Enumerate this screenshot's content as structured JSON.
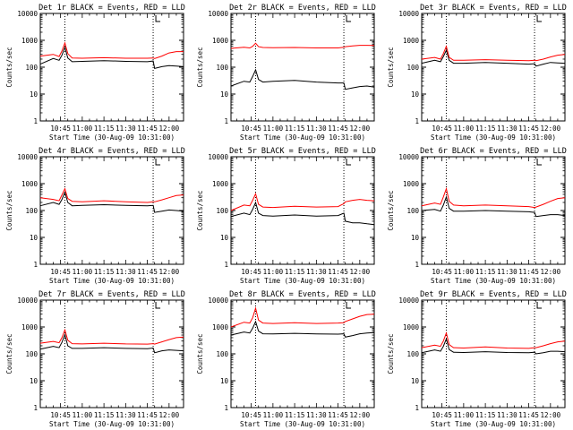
{
  "colors": {
    "events": "#000000",
    "lld": "#ff0000",
    "marker": "#000000"
  },
  "chart_data": [
    {
      "type": "line",
      "title": "Det 1r BLACK = Events, RED = LLD",
      "xlabel": "Start Time (30-Aug-09 10:31:00)",
      "ylabel": "Counts/sec",
      "x_tick_labels": [
        "10:45",
        "11:00",
        "11:15",
        "11:30",
        "11:45",
        "12:00"
      ],
      "y_tick_labels": [
        "1",
        "10",
        "100",
        "1000",
        "10000"
      ],
      "xlim": [
        "10:31",
        "12:10"
      ],
      "ylim": [
        1,
        10000
      ],
      "y_scale": "log",
      "markers": [
        "10:48",
        "11:49"
      ],
      "x": [
        "10:31",
        "10:40",
        "10:44",
        "10:46",
        "10:48",
        "10:50",
        "10:53",
        "11:00",
        "11:15",
        "11:30",
        "11:45",
        "11:49",
        "11:50",
        "11:55",
        "12:00",
        "12:05",
        "12:10"
      ],
      "series": [
        {
          "name": "BLACK = Events",
          "values": [
            130,
            210,
            180,
            280,
            550,
            220,
            160,
            165,
            175,
            165,
            160,
            170,
            90,
            105,
            115,
            110,
            105
          ]
        },
        {
          "name": "RED = LLD",
          "values": [
            260,
            300,
            250,
            400,
            800,
            320,
            220,
            215,
            225,
            215,
            215,
            220,
            210,
            260,
            340,
            380,
            380
          ]
        }
      ]
    },
    {
      "type": "line",
      "title": "Det 2r BLACK = Events, RED = LLD",
      "xlabel": "Start Time (30-Aug-09 10:31:00)",
      "ylabel": "Counts/sec",
      "x_tick_labels": [
        "10:45",
        "11:00",
        "11:15",
        "11:30",
        "11:45",
        "12:00"
      ],
      "y_tick_labels": [
        "1",
        "10",
        "100",
        "1000",
        "10000"
      ],
      "xlim": [
        "10:31",
        "12:10"
      ],
      "ylim": [
        1,
        10000
      ],
      "y_scale": "log",
      "markers": [
        "10:48",
        "11:49"
      ],
      "x": [
        "10:31",
        "10:40",
        "10:44",
        "10:46",
        "10:48",
        "10:50",
        "10:53",
        "11:00",
        "11:15",
        "11:30",
        "11:45",
        "11:49",
        "11:50",
        "11:55",
        "12:00",
        "12:05",
        "12:10"
      ],
      "series": [
        {
          "name": "BLACK = Events",
          "values": [
            20,
            30,
            28,
            45,
            80,
            35,
            28,
            30,
            32,
            28,
            26,
            26,
            15,
            17,
            19,
            20,
            18
          ]
        },
        {
          "name": "RED = LLD",
          "values": [
            500,
            550,
            520,
            600,
            780,
            580,
            540,
            530,
            540,
            520,
            520,
            550,
            580,
            620,
            650,
            650,
            640
          ]
        }
      ]
    },
    {
      "type": "line",
      "title": "Det 3r BLACK = Events, RED = LLD",
      "xlabel": "Start Time (30-Aug-09 10:31:00)",
      "ylabel": "Counts/sec",
      "x_tick_labels": [
        "10:45",
        "11:00",
        "11:15",
        "11:30",
        "11:45",
        "12:00"
      ],
      "y_tick_labels": [
        "1",
        "10",
        "100",
        "1000",
        "10000"
      ],
      "xlim": [
        "10:31",
        "12:10"
      ],
      "ylim": [
        1,
        10000
      ],
      "y_scale": "log",
      "markers": [
        "10:48",
        "11:49"
      ],
      "x": [
        "10:31",
        "10:40",
        "10:44",
        "10:46",
        "10:48",
        "10:50",
        "10:53",
        "11:00",
        "11:15",
        "11:30",
        "11:45",
        "11:49",
        "11:50",
        "11:55",
        "12:00",
        "12:05",
        "12:10"
      ],
      "series": [
        {
          "name": "BLACK = Events",
          "values": [
            140,
            180,
            160,
            250,
            430,
            180,
            140,
            140,
            150,
            140,
            130,
            135,
            110,
            130,
            150,
            145,
            140
          ]
        },
        {
          "name": "RED = LLD",
          "values": [
            200,
            230,
            200,
            320,
            600,
            230,
            180,
            180,
            190,
            180,
            175,
            180,
            175,
            200,
            240,
            280,
            300
          ]
        }
      ]
    },
    {
      "type": "line",
      "title": "Det 4r BLACK = Events, RED = LLD",
      "xlabel": "Start Time (30-Aug-09 10:31:00)",
      "ylabel": "Counts/sec",
      "x_tick_labels": [
        "10:45",
        "11:00",
        "11:15",
        "11:30",
        "11:45",
        "12:00"
      ],
      "y_tick_labels": [
        "1",
        "10",
        "100",
        "1000",
        "10000"
      ],
      "xlim": [
        "10:31",
        "12:10"
      ],
      "ylim": [
        1,
        10000
      ],
      "y_scale": "log",
      "markers": [
        "10:48",
        "11:49"
      ],
      "x": [
        "10:31",
        "10:40",
        "10:44",
        "10:46",
        "10:48",
        "10:50",
        "10:53",
        "11:00",
        "11:15",
        "11:30",
        "11:45",
        "11:49",
        "11:50",
        "11:55",
        "12:00",
        "12:05",
        "12:10"
      ],
      "series": [
        {
          "name": "BLACK = Events",
          "values": [
            150,
            200,
            170,
            260,
            480,
            200,
            150,
            155,
            165,
            155,
            150,
            155,
            85,
            95,
            105,
            100,
            95
          ]
        },
        {
          "name": "RED = LLD",
          "values": [
            300,
            260,
            230,
            380,
            650,
            280,
            220,
            210,
            230,
            210,
            200,
            210,
            210,
            250,
            300,
            360,
            380
          ]
        }
      ]
    },
    {
      "type": "line",
      "title": "Det 5r BLACK = Events, RED = LLD",
      "xlabel": "Start Time (30-Aug-09 10:31:00)",
      "ylabel": "Counts/sec",
      "x_tick_labels": [
        "10:45",
        "11:00",
        "11:15",
        "11:30",
        "11:45",
        "12:00"
      ],
      "y_tick_labels": [
        "1",
        "10",
        "100",
        "1000",
        "10000"
      ],
      "xlim": [
        "10:31",
        "12:10"
      ],
      "ylim": [
        1,
        10000
      ],
      "y_scale": "log",
      "markers": [
        "10:48",
        "11:49"
      ],
      "x": [
        "10:31",
        "10:40",
        "10:44",
        "10:46",
        "10:48",
        "10:50",
        "10:53",
        "11:00",
        "11:15",
        "11:30",
        "11:45",
        "11:49",
        "11:50",
        "11:55",
        "12:00",
        "12:05",
        "12:10"
      ],
      "series": [
        {
          "name": "BLACK = Events",
          "values": [
            60,
            80,
            70,
            110,
            200,
            80,
            65,
            62,
            68,
            62,
            65,
            80,
            40,
            35,
            35,
            32,
            30
          ]
        },
        {
          "name": "RED = LLD",
          "values": [
            100,
            160,
            150,
            240,
            420,
            170,
            135,
            130,
            145,
            135,
            140,
            180,
            210,
            240,
            260,
            240,
            230
          ]
        }
      ]
    },
    {
      "type": "line",
      "title": "Det 6r BLACK = Events, RED = LLD",
      "xlabel": "Start Time (30-Aug-09 10:31:00)",
      "ylabel": "Counts/sec",
      "x_tick_labels": [
        "10:45",
        "11:00",
        "11:15",
        "11:30",
        "11:45",
        "12:00"
      ],
      "y_tick_labels": [
        "1",
        "10",
        "100",
        "1000",
        "10000"
      ],
      "xlim": [
        "10:31",
        "12:10"
      ],
      "ylim": [
        1,
        10000
      ],
      "y_scale": "log",
      "markers": [
        "10:48",
        "11:49"
      ],
      "x": [
        "10:31",
        "10:40",
        "10:44",
        "10:46",
        "10:48",
        "10:50",
        "10:53",
        "11:00",
        "11:15",
        "11:30",
        "11:45",
        "11:49",
        "11:50",
        "11:55",
        "12:00",
        "12:05",
        "12:10"
      ],
      "series": [
        {
          "name": "BLACK = Events",
          "values": [
            100,
            110,
            95,
            160,
            320,
            120,
            95,
            95,
            100,
            95,
            90,
            85,
            60,
            65,
            70,
            70,
            65
          ]
        },
        {
          "name": "RED = LLD",
          "values": [
            150,
            190,
            170,
            320,
            650,
            220,
            160,
            150,
            160,
            150,
            140,
            130,
            135,
            170,
            220,
            280,
            300
          ]
        }
      ]
    },
    {
      "type": "line",
      "title": "Det 7r BLACK = Events, RED = LLD",
      "xlabel": "Start Time (30-Aug-09 10:31:00)",
      "ylabel": "Counts/sec",
      "x_tick_labels": [
        "10:45",
        "11:00",
        "11:15",
        "11:30",
        "11:45",
        "12:00"
      ],
      "y_tick_labels": [
        "1",
        "10",
        "100",
        "1000",
        "10000"
      ],
      "xlim": [
        "10:31",
        "12:10"
      ],
      "ylim": [
        1,
        10000
      ],
      "y_scale": "log",
      "markers": [
        "10:48",
        "11:49"
      ],
      "x": [
        "10:31",
        "10:40",
        "10:44",
        "10:46",
        "10:48",
        "10:50",
        "10:53",
        "11:00",
        "11:15",
        "11:30",
        "11:45",
        "11:49",
        "11:50",
        "11:55",
        "12:00",
        "12:05",
        "12:10"
      ],
      "series": [
        {
          "name": "BLACK = Events",
          "values": [
            150,
            190,
            170,
            270,
            520,
            200,
            160,
            160,
            170,
            160,
            155,
            165,
            110,
            130,
            140,
            135,
            130
          ]
        },
        {
          "name": "RED = LLD",
          "values": [
            250,
            290,
            260,
            400,
            780,
            320,
            240,
            235,
            250,
            235,
            230,
            240,
            230,
            280,
            340,
            400,
            420
          ]
        }
      ]
    },
    {
      "type": "line",
      "title": "Det 8r BLACK = Events, RED = LLD",
      "xlabel": "Start Time (30-Aug-09 10:31:00)",
      "ylabel": "Counts/sec",
      "x_tick_labels": [
        "10:45",
        "11:00",
        "11:15",
        "11:30",
        "11:45",
        "12:00"
      ],
      "y_tick_labels": [
        "1",
        "10",
        "100",
        "1000",
        "10000"
      ],
      "xlim": [
        "10:31",
        "12:10"
      ],
      "ylim": [
        1,
        10000
      ],
      "y_scale": "log",
      "markers": [
        "10:48",
        "11:49"
      ],
      "x": [
        "10:31",
        "10:40",
        "10:44",
        "10:46",
        "10:48",
        "10:50",
        "10:53",
        "11:00",
        "11:15",
        "11:30",
        "11:45",
        "11:49",
        "11:50",
        "11:55",
        "12:00",
        "12:05",
        "12:10"
      ],
      "series": [
        {
          "name": "BLACK = Events",
          "values": [
            500,
            650,
            600,
            900,
            1600,
            700,
            560,
            550,
            580,
            550,
            540,
            560,
            420,
            480,
            560,
            600,
            620
          ]
        },
        {
          "name": "RED = LLD",
          "values": [
            1000,
            1500,
            1400,
            2200,
            5000,
            1800,
            1400,
            1350,
            1450,
            1350,
            1400,
            1450,
            1600,
            2000,
            2500,
            2900,
            3000
          ]
        }
      ]
    },
    {
      "type": "line",
      "title": "Det 9r BLACK = Events, RED = LLD",
      "xlabel": "Start Time (30-Aug-09 10:31:00)",
      "ylabel": "Counts/sec",
      "x_tick_labels": [
        "10:45",
        "11:00",
        "11:15",
        "11:30",
        "11:45",
        "12:00"
      ],
      "y_tick_labels": [
        "1",
        "10",
        "100",
        "1000",
        "10000"
      ],
      "xlim": [
        "10:31",
        "12:10"
      ],
      "ylim": [
        1,
        10000
      ],
      "y_scale": "log",
      "markers": [
        "10:48",
        "11:49"
      ],
      "x": [
        "10:31",
        "10:40",
        "10:44",
        "10:46",
        "10:48",
        "10:50",
        "10:53",
        "11:00",
        "11:15",
        "11:30",
        "11:45",
        "11:49",
        "11:50",
        "11:55",
        "12:00",
        "12:05",
        "12:10"
      ],
      "series": [
        {
          "name": "BLACK = Events",
          "values": [
            110,
            140,
            125,
            190,
            360,
            145,
            115,
            112,
            120,
            112,
            110,
            115,
            100,
            110,
            125,
            125,
            120
          ]
        },
        {
          "name": "RED = LLD",
          "values": [
            170,
            210,
            190,
            300,
            600,
            220,
            170,
            165,
            180,
            165,
            160,
            170,
            170,
            200,
            240,
            280,
            300
          ]
        }
      ]
    }
  ]
}
